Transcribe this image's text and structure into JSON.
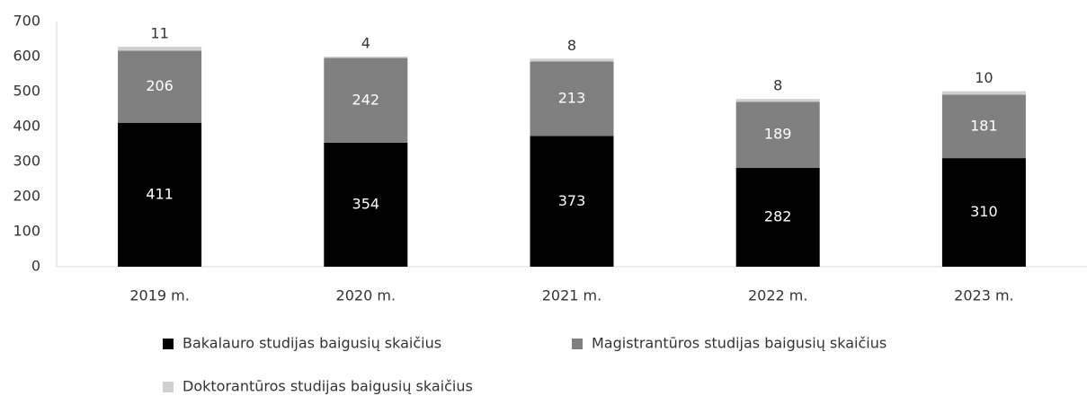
{
  "chart_data": {
    "type": "stacked_bar",
    "categories": [
      "2019 m.",
      "2020 m.",
      "2021 m.",
      "2022 m.",
      "2023 m."
    ],
    "series": [
      {
        "name": "Bakalauro studijas baigusių skaičius",
        "color": "#000000",
        "values": [
          411,
          354,
          373,
          282,
          310
        ]
      },
      {
        "name": "Magistrantūros studijas baigusių skaičius",
        "color": "#808080",
        "values": [
          206,
          242,
          213,
          189,
          181
        ]
      },
      {
        "name": "Doktorantūros studijas baigusių skaičius",
        "color": "#d0d0d0",
        "values": [
          11,
          4,
          8,
          8,
          10
        ]
      }
    ],
    "ylim": [
      0,
      700
    ],
    "yticks": [
      0,
      100,
      200,
      300,
      400,
      500,
      600,
      700
    ],
    "grid": false
  }
}
